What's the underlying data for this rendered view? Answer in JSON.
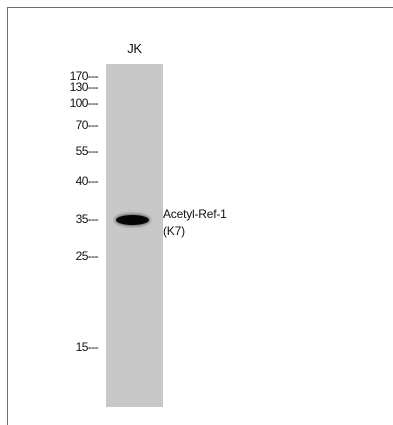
{
  "lane": {
    "label": "JK"
  },
  "markers": [
    {
      "label": "170---"
    },
    {
      "label": "130---"
    },
    {
      "label": "100---"
    },
    {
      "label": "70---"
    },
    {
      "label": "55---"
    },
    {
      "label": "40---"
    },
    {
      "label": "35---"
    },
    {
      "label": "25---"
    },
    {
      "label": "15---"
    }
  ],
  "band": {
    "label_line1": "Acetyl-Ref-1",
    "label_line2": "(K7)"
  }
}
